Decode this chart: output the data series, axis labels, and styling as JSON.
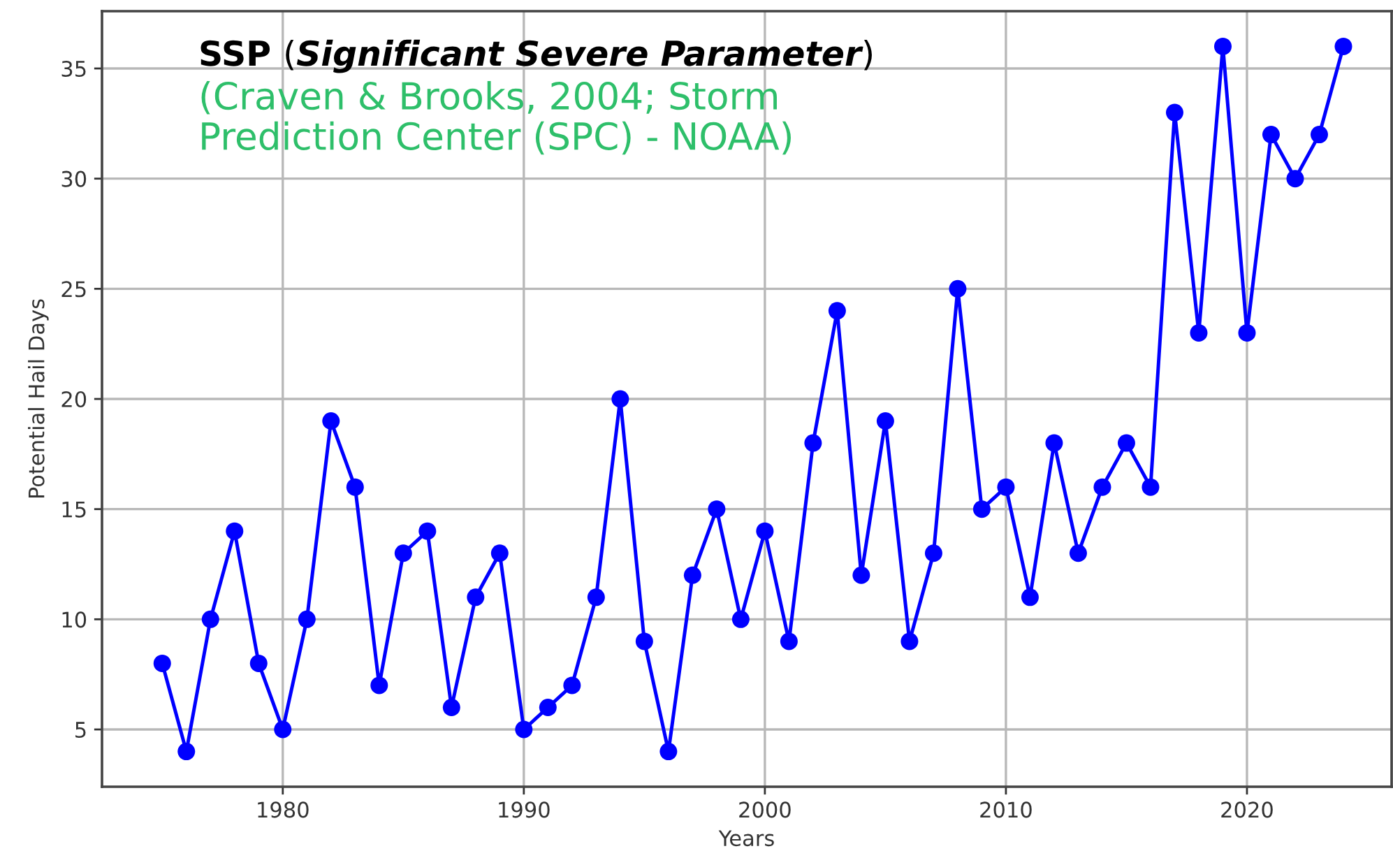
{
  "chart_data": {
    "type": "line",
    "title": "SSP (Significant Severe Parameter)",
    "subtitle": "(Craven & Brooks, 2004; Storm Prediction Center (SPC) - NOAA)",
    "xlabel": "Years",
    "ylabel": "Potential Hail Days",
    "x": [
      1975,
      1976,
      1977,
      1978,
      1979,
      1980,
      1981,
      1982,
      1983,
      1984,
      1985,
      1986,
      1987,
      1988,
      1989,
      1990,
      1991,
      1992,
      1993,
      1994,
      1995,
      1996,
      1997,
      1998,
      1999,
      2000,
      2001,
      2002,
      2003,
      2004,
      2005,
      2006,
      2007,
      2008,
      2009,
      2010,
      2011,
      2012,
      2013,
      2014,
      2015,
      2016,
      2017,
      2018,
      2019,
      2020,
      2021,
      2022,
      2023,
      2024
    ],
    "series": [
      {
        "color": "#0000ff",
        "values": [
          8,
          4,
          10,
          14,
          8,
          5,
          10,
          19,
          16,
          7,
          13,
          14,
          6,
          11,
          13,
          5,
          6,
          7,
          11,
          20,
          9,
          4,
          12,
          15,
          10,
          14,
          9,
          18,
          24,
          12,
          19,
          9,
          13,
          25,
          15,
          16,
          11,
          18,
          13,
          16,
          18,
          16,
          33,
          23,
          36,
          23,
          32,
          30,
          32,
          36
        ]
      }
    ],
    "xlim": [
      1972.5,
      2026
    ],
    "ylim": [
      2.4,
      37.6
    ],
    "xticks": [
      1980,
      1990,
      2000,
      2010,
      2020
    ],
    "yticks": [
      5,
      10,
      15,
      20,
      25,
      30,
      35
    ],
    "grid": true,
    "marker": "circle",
    "line_style": "solid"
  }
}
